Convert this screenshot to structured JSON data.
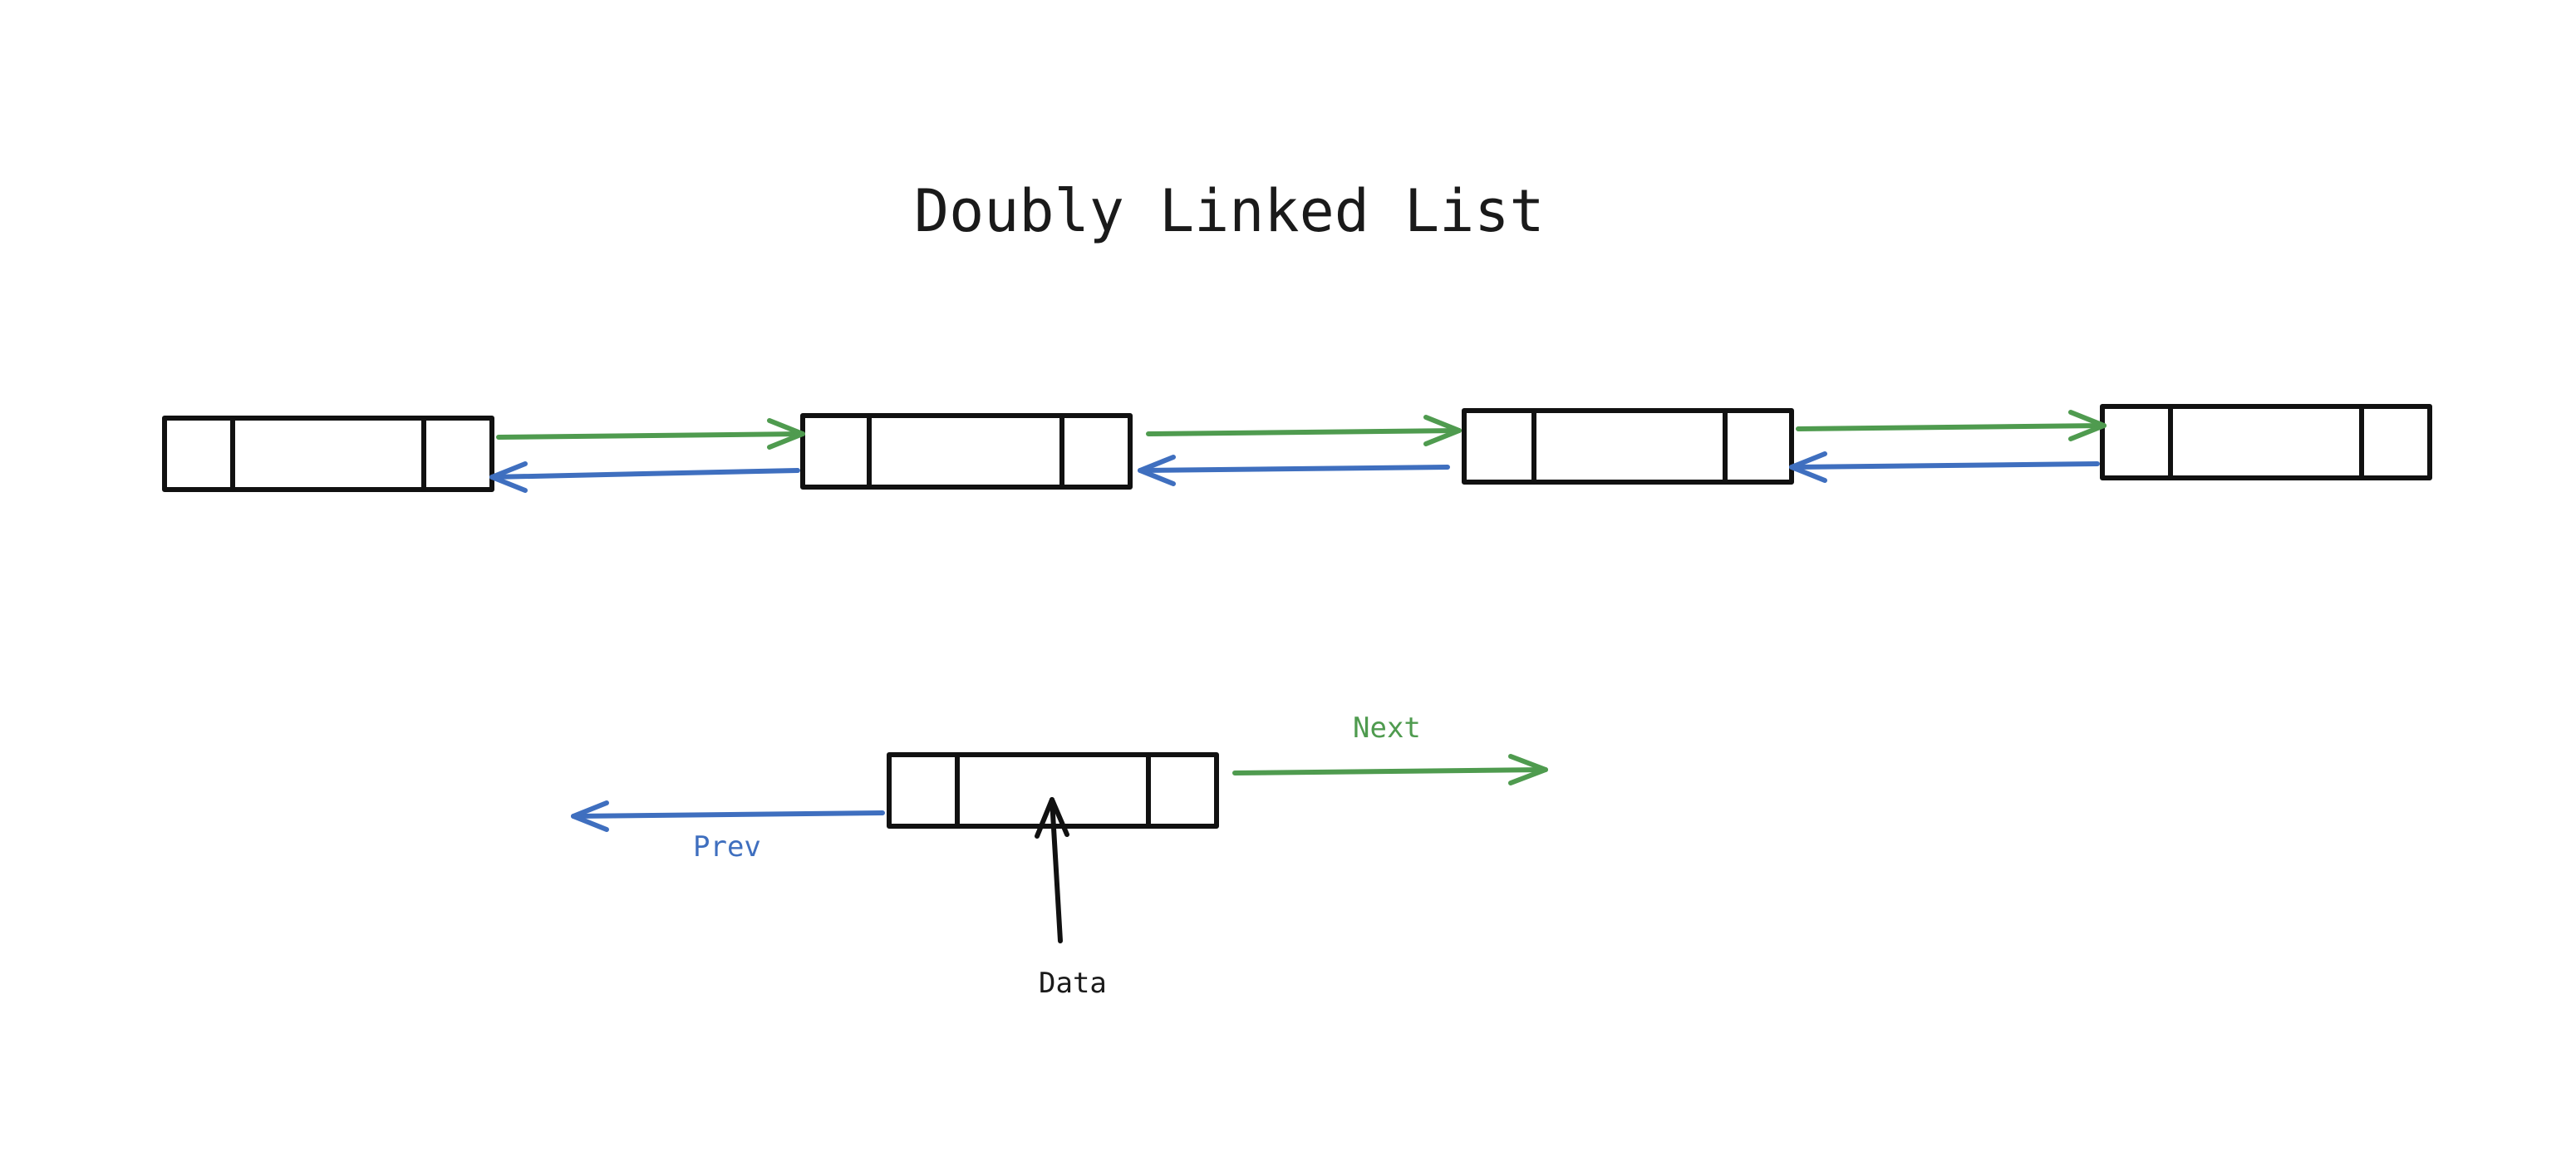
{
  "title": "Doubly Linked List",
  "chain": {
    "node_count": 4
  },
  "legend": {
    "next_label": "Next",
    "prev_label": "Prev",
    "data_label": "Data"
  },
  "colors": {
    "next": "#4f9b4f",
    "prev": "#3f6fbf",
    "outline": "#111111"
  }
}
